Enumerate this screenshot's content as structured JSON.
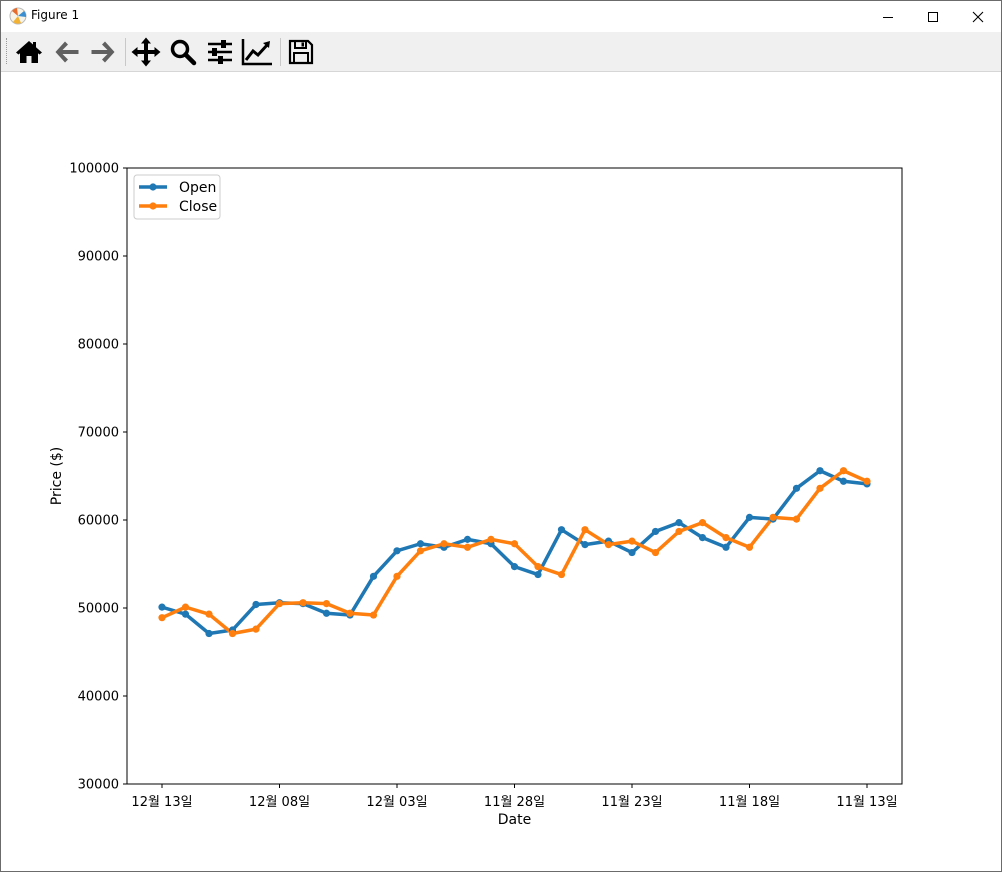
{
  "window": {
    "title": "Figure 1",
    "controls": [
      "minimize",
      "maximize",
      "close"
    ]
  },
  "toolbar": {
    "buttons": [
      {
        "name": "home",
        "icon": "home-icon"
      },
      {
        "name": "back",
        "icon": "back-arrow-icon"
      },
      {
        "name": "forward",
        "icon": "forward-arrow-icon"
      },
      {
        "name": "pan",
        "icon": "move-icon"
      },
      {
        "name": "zoom",
        "icon": "zoom-icon"
      },
      {
        "name": "subplots",
        "icon": "sliders-icon"
      },
      {
        "name": "edit-axis",
        "icon": "line-chart-icon"
      },
      {
        "name": "save",
        "icon": "save-icon"
      }
    ]
  },
  "chart_data": {
    "type": "line",
    "xlabel": "Date",
    "ylabel": "Price ($)",
    "ylim": [
      30000,
      100000
    ],
    "yticks": [
      30000,
      40000,
      50000,
      60000,
      70000,
      80000,
      90000,
      100000
    ],
    "xtick_labels": [
      "12월 13일",
      "12월 08일",
      "12월 03일",
      "11월 28일",
      "11월 23일",
      "11월 18일",
      "11월 13일"
    ],
    "xtick_index": [
      0,
      5,
      10,
      15,
      20,
      25,
      30
    ],
    "legend": {
      "position": "top-left"
    },
    "grid": false,
    "colors": {
      "Open": "#1f77b4",
      "Close": "#ff7f0e"
    },
    "series": [
      {
        "name": "Open",
        "values": [
          50100,
          49300,
          47100,
          47500,
          50400,
          50600,
          50500,
          49400,
          49200,
          53600,
          56500,
          57300,
          56900,
          57800,
          57300,
          54700,
          53800,
          58900,
          57200,
          57600,
          56300,
          58700,
          59700,
          58000,
          56900,
          60300,
          60100,
          63600,
          65600,
          64400,
          64100
        ]
      },
      {
        "name": "Close",
        "values": [
          48900,
          50100,
          49300,
          47100,
          47600,
          50500,
          50600,
          50500,
          49400,
          49200,
          53600,
          56500,
          57300,
          56900,
          57800,
          57300,
          54700,
          53800,
          58900,
          57200,
          57600,
          56300,
          58700,
          59700,
          58000,
          56900,
          60300,
          60100,
          63600,
          65600,
          64400
        ]
      }
    ]
  }
}
